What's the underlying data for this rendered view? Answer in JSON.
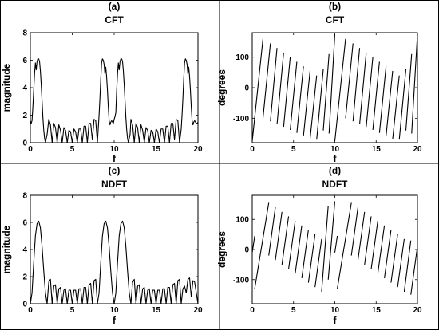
{
  "chart_data": [
    {
      "panel": "(a)",
      "title": "CFT",
      "type": "line",
      "xlabel": "f",
      "ylabel": "magnitude",
      "xlim": [
        0,
        20
      ],
      "ylim": [
        0,
        8
      ],
      "xticks": [
        "0",
        "5",
        "10",
        "15",
        "20"
      ],
      "yticks": [
        "0",
        "2",
        "4",
        "6",
        "8"
      ],
      "series": [
        {
          "x": [
            0.0,
            0.1,
            0.2,
            0.3,
            0.4,
            0.5,
            0.6,
            0.7,
            0.8,
            0.9,
            1.0,
            1.1,
            1.2,
            1.3,
            1.4,
            1.5,
            1.6,
            1.7,
            1.8,
            1.9,
            2.0,
            2.2,
            2.4,
            2.6,
            2.8,
            3.0,
            3.2,
            3.4,
            3.6,
            3.8,
            4.0,
            4.2,
            4.4,
            4.6,
            4.8,
            5.0,
            5.2,
            5.4,
            5.6,
            5.8,
            6.0,
            6.2,
            6.4,
            6.6,
            6.8,
            7.0,
            7.2,
            7.4,
            7.6,
            7.8,
            8.0,
            8.1,
            8.2,
            8.3,
            8.4,
            8.5,
            8.6,
            8.7,
            8.8,
            8.9,
            9.0,
            9.1,
            9.2,
            9.3,
            9.4,
            9.5,
            9.6,
            9.7,
            9.8,
            9.9,
            10.0,
            10.1,
            10.2,
            10.3,
            10.4,
            10.5,
            10.6,
            10.7,
            10.8,
            10.9,
            11.0,
            11.1,
            11.2,
            11.3,
            11.4,
            11.5,
            11.6,
            11.7,
            11.8,
            11.9,
            12.0,
            12.2,
            12.4,
            12.6,
            12.8,
            13.0,
            13.2,
            13.4,
            13.6,
            13.8,
            14.0,
            14.2,
            14.4,
            14.6,
            14.8,
            15.0,
            15.2,
            15.4,
            15.6,
            15.8,
            16.0,
            16.2,
            16.4,
            16.6,
            16.8,
            17.0,
            17.2,
            17.4,
            17.6,
            17.8,
            18.0,
            18.1,
            18.2,
            18.3,
            18.4,
            18.5,
            18.6,
            18.7,
            18.8,
            18.9,
            19.0,
            19.1,
            19.2,
            19.3,
            19.4,
            19.5,
            19.6,
            19.7,
            19.8,
            19.9,
            20.0
          ],
          "y": [
            1.6,
            1.4,
            1.6,
            2.6,
            3.8,
            5.0,
            5.8,
            5.3,
            5.9,
            6.1,
            6.1,
            5.9,
            5.2,
            4.2,
            3.0,
            1.8,
            0.9,
            0.3,
            0.0,
            0.3,
            0.6,
            1.7,
            1.3,
            0.0,
            1.4,
            1.1,
            0.0,
            1.3,
            0.9,
            0.0,
            1.1,
            0.9,
            0.0,
            0.9,
            0.8,
            0.0,
            1.0,
            0.8,
            0.0,
            1.0,
            1.0,
            0.0,
            1.2,
            1.2,
            0.0,
            1.4,
            1.4,
            0.2,
            1.7,
            1.6,
            0.0,
            1.0,
            2.0,
            3.2,
            4.6,
            5.8,
            6.1,
            6.0,
            5.7,
            5.0,
            5.5,
            4.8,
            3.8,
            2.6,
            1.6,
            1.3,
            1.5,
            1.6,
            1.5,
            1.4,
            1.7,
            1.9,
            2.2,
            3.8,
            5.0,
            5.8,
            5.3,
            5.9,
            6.1,
            6.1,
            5.9,
            5.2,
            4.2,
            3.0,
            1.8,
            0.9,
            0.3,
            0.0,
            0.3,
            0.6,
            1.7,
            1.3,
            0.0,
            1.4,
            1.1,
            0.0,
            1.3,
            0.9,
            0.0,
            1.1,
            0.9,
            0.0,
            0.9,
            0.8,
            0.0,
            1.0,
            0.8,
            0.0,
            1.0,
            1.0,
            0.0,
            1.2,
            1.2,
            0.0,
            1.4,
            1.4,
            0.2,
            1.7,
            1.6,
            0.0,
            1.0,
            2.0,
            3.2,
            4.6,
            5.8,
            6.1,
            6.0,
            5.7,
            5.0,
            5.5,
            4.8,
            3.8,
            2.6,
            1.6,
            1.3,
            1.5,
            1.6,
            1.5,
            1.4,
            1.4,
            1.5
          ]
        }
      ]
    },
    {
      "panel": "(b)",
      "title": "CFT",
      "type": "line",
      "xlabel": "f",
      "ylabel": "degrees",
      "xlim": [
        0,
        20
      ],
      "ylim": [
        -180,
        180
      ],
      "xticks": [
        "0",
        "5",
        "10",
        "15",
        "20"
      ],
      "yticks": [
        "-100",
        "0",
        "100"
      ],
      "series": [
        {
          "x": [
            0.0,
            1.3,
            1.3,
            2.2,
            2.2,
            3.0,
            3.0,
            3.8,
            3.8,
            4.6,
            4.6,
            5.4,
            5.4,
            6.2,
            6.2,
            7.0,
            7.0,
            7.8,
            7.8,
            8.6,
            8.6,
            9.3,
            9.3,
            10.0,
            10.0,
            11.3,
            11.3,
            12.2,
            12.2,
            13.0,
            13.0,
            13.8,
            13.8,
            14.6,
            14.6,
            15.4,
            15.4,
            16.2,
            16.2,
            17.0,
            17.0,
            17.8,
            17.8,
            18.6,
            18.6,
            19.3,
            19.3,
            20.0
          ],
          "y": [
            -175,
            160,
            -100,
            145,
            -110,
            130,
            -120,
            115,
            -128,
            100,
            -138,
            85,
            -148,
            70,
            -158,
            55,
            -168,
            40,
            -170,
            60,
            -140,
            110,
            -150,
            175,
            -175,
            160,
            -100,
            145,
            -110,
            130,
            -120,
            115,
            -128,
            100,
            -138,
            85,
            -148,
            70,
            -158,
            55,
            -168,
            40,
            -170,
            60,
            -140,
            110,
            -150,
            175
          ]
        }
      ]
    },
    {
      "panel": "(c)",
      "title": "NDFT",
      "type": "line",
      "xlabel": "f",
      "ylabel": "magnitude",
      "xlim": [
        0,
        20
      ],
      "ylim": [
        0,
        8
      ],
      "xticks": [
        "0",
        "5",
        "10",
        "15",
        "20"
      ],
      "yticks": [
        "0",
        "2",
        "4",
        "6",
        "8"
      ],
      "series": [
        {
          "x": [
            0.0,
            0.2,
            0.4,
            0.6,
            0.8,
            1.0,
            1.2,
            1.4,
            1.6,
            1.8,
            2.0,
            2.2,
            2.4,
            2.6,
            2.8,
            3.0,
            3.2,
            3.4,
            3.6,
            3.8,
            4.0,
            4.2,
            4.4,
            4.6,
            4.8,
            5.0,
            5.2,
            5.4,
            5.6,
            5.8,
            6.0,
            6.2,
            6.4,
            6.6,
            6.8,
            7.0,
            7.2,
            7.4,
            7.6,
            7.8,
            8.0,
            8.2,
            8.4,
            8.6,
            8.8,
            9.0,
            9.2,
            9.4,
            9.6,
            9.8,
            10.0,
            10.2,
            10.4,
            10.6,
            10.8,
            11.0,
            11.2,
            11.4,
            11.6,
            11.8,
            12.0,
            12.2,
            12.4,
            12.6,
            12.8,
            13.0,
            13.2,
            13.4,
            13.6,
            13.8,
            14.0,
            14.2,
            14.4,
            14.6,
            14.8,
            15.0,
            15.2,
            15.4,
            15.6,
            15.8,
            16.0,
            16.2,
            16.4,
            16.6,
            16.8,
            17.0,
            17.2,
            17.4,
            17.6,
            17.8,
            18.0,
            18.2,
            18.4,
            18.6,
            18.8,
            19.0,
            19.2,
            19.4,
            19.6,
            19.8,
            20.0
          ],
          "y": [
            0.0,
            0.8,
            3.0,
            5.0,
            5.9,
            6.1,
            5.6,
            4.2,
            2.4,
            0.8,
            0.0,
            1.6,
            1.8,
            0.0,
            1.3,
            1.4,
            0.0,
            1.1,
            1.2,
            0.0,
            1.0,
            1.1,
            0.0,
            1.0,
            1.0,
            0.0,
            1.0,
            1.0,
            0.0,
            1.1,
            1.1,
            0.0,
            1.2,
            1.2,
            0.0,
            1.4,
            1.5,
            0.0,
            1.7,
            1.8,
            0.0,
            0.8,
            3.0,
            5.0,
            5.9,
            6.1,
            5.6,
            4.2,
            2.4,
            0.8,
            0.0,
            0.8,
            3.0,
            5.0,
            5.9,
            6.1,
            5.6,
            4.2,
            2.4,
            0.8,
            0.0,
            1.6,
            1.8,
            0.0,
            1.3,
            1.4,
            0.0,
            1.1,
            1.2,
            0.0,
            1.0,
            1.1,
            0.0,
            1.0,
            1.0,
            0.0,
            1.0,
            1.0,
            0.0,
            1.1,
            1.1,
            0.0,
            1.2,
            1.2,
            0.0,
            1.4,
            1.5,
            0.0,
            1.7,
            1.8,
            0.0,
            1.1,
            1.3,
            0.8,
            1.8,
            1.9,
            0.5,
            1.7,
            1.6,
            0.8,
            0.0
          ]
        }
      ]
    },
    {
      "panel": "(d)",
      "title": "NDFT",
      "type": "line",
      "xlabel": "f",
      "ylabel": "degrees",
      "xlim": [
        0,
        20
      ],
      "ylim": [
        -180,
        180
      ],
      "xticks": [
        "0",
        "5",
        "10",
        "15",
        "20"
      ],
      "yticks": [
        "-100",
        "0",
        "100"
      ],
      "series": [
        {
          "x": [
            0.0,
            0.3,
            0.3,
            2.0,
            2.0,
            2.8,
            2.8,
            3.6,
            3.6,
            4.4,
            4.4,
            5.2,
            5.2,
            6.0,
            6.0,
            6.8,
            6.8,
            7.6,
            7.6,
            8.4,
            8.4,
            9.2,
            9.2,
            10.0,
            10.0,
            10.3,
            10.3,
            12.0,
            12.0,
            12.8,
            12.8,
            13.6,
            13.6,
            14.4,
            14.4,
            15.2,
            15.2,
            16.0,
            16.0,
            16.8,
            16.8,
            17.6,
            17.6,
            18.4,
            18.4,
            19.2,
            19.2,
            20.0
          ],
          "y": [
            -10,
            45,
            -130,
            155,
            -20,
            140,
            -35,
            125,
            -50,
            110,
            -65,
            95,
            -80,
            80,
            -95,
            65,
            -110,
            50,
            -125,
            35,
            -140,
            145,
            -100,
            160,
            -10,
            45,
            -130,
            155,
            -20,
            140,
            -35,
            125,
            -50,
            110,
            -65,
            95,
            -80,
            80,
            -95,
            65,
            -110,
            50,
            -125,
            35,
            -140,
            30,
            -150,
            10
          ]
        }
      ]
    }
  ]
}
